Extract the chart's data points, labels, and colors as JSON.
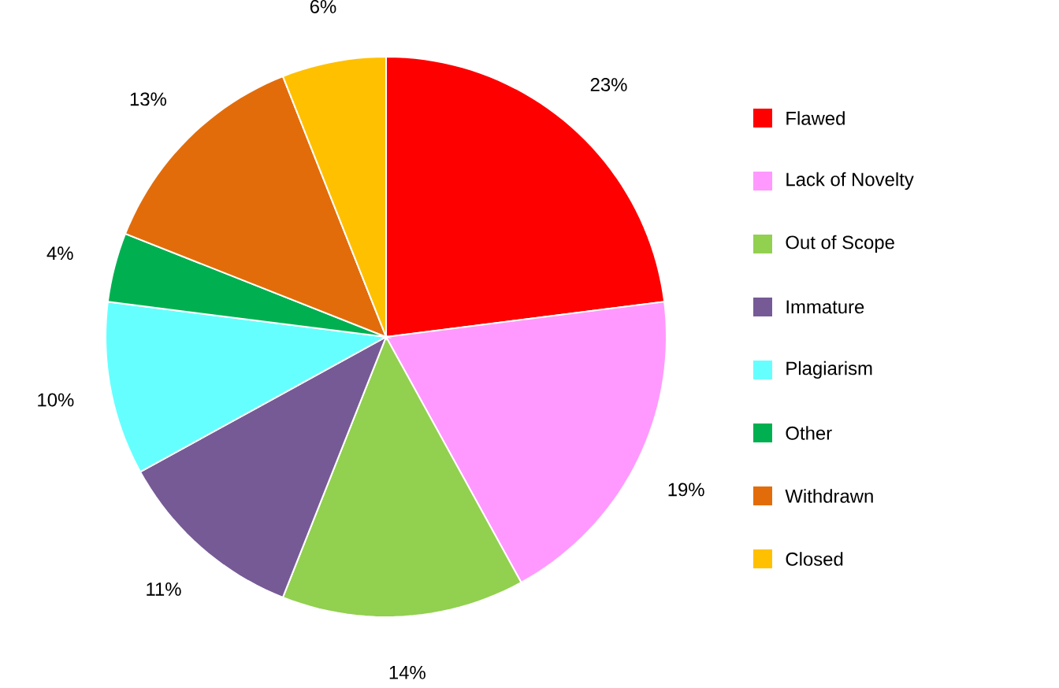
{
  "chart_data": {
    "type": "pie",
    "categories": [
      "Flawed",
      "Lack of Novelty",
      "Out of Scope",
      "Immature",
      "Plagiarism",
      "Other",
      "Withdrawn",
      "Closed"
    ],
    "values": [
      23,
      19,
      14,
      11,
      10,
      4,
      13,
      6
    ],
    "colors": [
      "#ff0000",
      "#ff99ff",
      "#92d050",
      "#765a96",
      "#66ffff",
      "#00b050",
      "#e36c0a",
      "#ffc000"
    ],
    "value_labels": [
      "23%",
      "19%",
      "14%",
      "11%",
      "10%",
      "4%",
      "13%",
      "6%"
    ],
    "legend": "right"
  }
}
